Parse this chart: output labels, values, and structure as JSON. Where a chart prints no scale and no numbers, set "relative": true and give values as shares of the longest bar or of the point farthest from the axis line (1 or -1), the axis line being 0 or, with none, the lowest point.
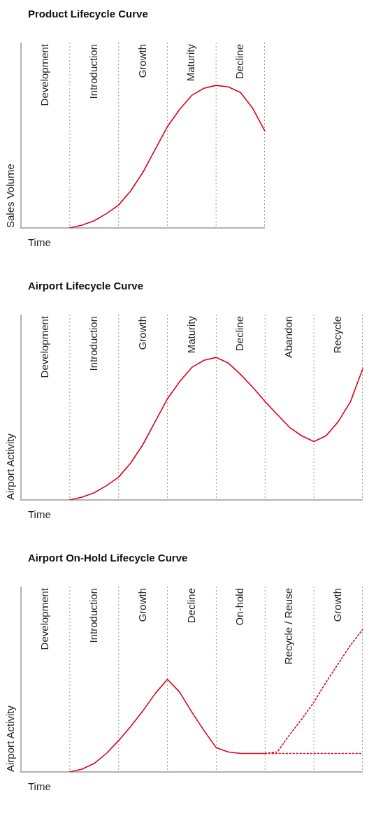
{
  "chart_data": [
    {
      "type": "line",
      "title": "Product Lifecycle Curve",
      "xlabel": "Time",
      "ylabel": "Sales Volume",
      "relative": true,
      "grid": "x",
      "marker": "none",
      "annotations": [
        "Development",
        "Introduction",
        "Growth",
        "Maturity",
        "Decline"
      ],
      "categories": [
        null,
        null,
        null,
        null,
        null,
        null,
        null,
        null,
        null,
        null,
        null,
        null,
        null,
        null,
        null,
        null,
        null,
        null,
        null,
        null,
        null
      ],
      "series": [
        {
          "color": "#e2001a",
          "line_style": "solid",
          "values": [
            null,
            null,
            null,
            null,
            0,
            0.02,
            0.05,
            0.1,
            0.16,
            0.26,
            0.39,
            0.55,
            0.71,
            0.83,
            0.93,
            0.98,
            1,
            0.99,
            0.95,
            0.84,
            0.68
          ]
        }
      ]
    },
    {
      "type": "line",
      "title": "Airport Lifecycle Curve",
      "xlabel": "Time",
      "ylabel": "Airport Activity",
      "relative": true,
      "grid": "x",
      "marker": "none",
      "annotations": [
        "Development",
        "Introduction",
        "Growth",
        "Maturity",
        "Decline",
        "Abandon",
        "Recycle"
      ],
      "categories": [
        null,
        null,
        null,
        null,
        null,
        null,
        null,
        null,
        null,
        null,
        null,
        null,
        null,
        null,
        null,
        null,
        null,
        null,
        null,
        null,
        null,
        null,
        null,
        null,
        null,
        null,
        null,
        null,
        null
      ],
      "series": [
        {
          "color": "#e2001a",
          "line_style": "solid",
          "values": [
            null,
            null,
            null,
            null,
            0,
            0.02,
            0.05,
            0.1,
            0.16,
            0.26,
            0.39,
            0.55,
            0.71,
            0.83,
            0.93,
            0.98,
            1,
            0.96,
            0.88,
            0.79,
            0.69,
            0.6,
            0.51,
            0.45,
            0.41,
            0.45,
            0.55,
            0.69,
            0.92
          ]
        }
      ]
    },
    {
      "type": "line",
      "title": "Airport On-Hold Lifecycle Curve",
      "xlabel": "Time",
      "ylabel": "Airport Activity",
      "relative": true,
      "grid": "x",
      "marker": "none",
      "annotations": [
        "Development",
        "Introduction",
        "Growth",
        "Decline",
        "On-hold",
        "Recycle / Reuse",
        "Growth"
      ],
      "categories": [
        null,
        null,
        null,
        null,
        null,
        null,
        null,
        null,
        null,
        null,
        null,
        null,
        null,
        null,
        null,
        null,
        null,
        null,
        null,
        null,
        null,
        null,
        null,
        null,
        null,
        null,
        null,
        null,
        null
      ],
      "series": [
        {
          "color": "#e2001a",
          "line_style": "solid",
          "values": [
            null,
            null,
            null,
            null,
            0,
            0.02,
            0.06,
            0.13,
            0.22,
            0.32,
            0.43,
            0.55,
            0.65,
            0.56,
            0.42,
            0.29,
            0.17,
            0.14,
            0.13,
            0.13,
            0.13,
            null,
            null,
            null,
            null,
            null,
            null,
            null,
            null
          ]
        },
        {
          "color": "#e2001a",
          "line_style": "dotted",
          "values": [
            null,
            null,
            null,
            null,
            null,
            null,
            null,
            null,
            null,
            null,
            null,
            null,
            null,
            null,
            null,
            null,
            null,
            null,
            null,
            null,
            0.13,
            0.13,
            0.13,
            0.13,
            0.13,
            0.13,
            0.13,
            0.13,
            0.13
          ]
        },
        {
          "color": "#e2001a",
          "line_style": "dotted",
          "values": [
            null,
            null,
            null,
            null,
            null,
            null,
            null,
            null,
            null,
            null,
            null,
            null,
            null,
            null,
            null,
            null,
            null,
            null,
            null,
            null,
            0.13,
            0.14,
            0.26,
            0.37,
            0.49,
            0.63,
            0.76,
            0.89,
            1
          ]
        }
      ]
    }
  ]
}
